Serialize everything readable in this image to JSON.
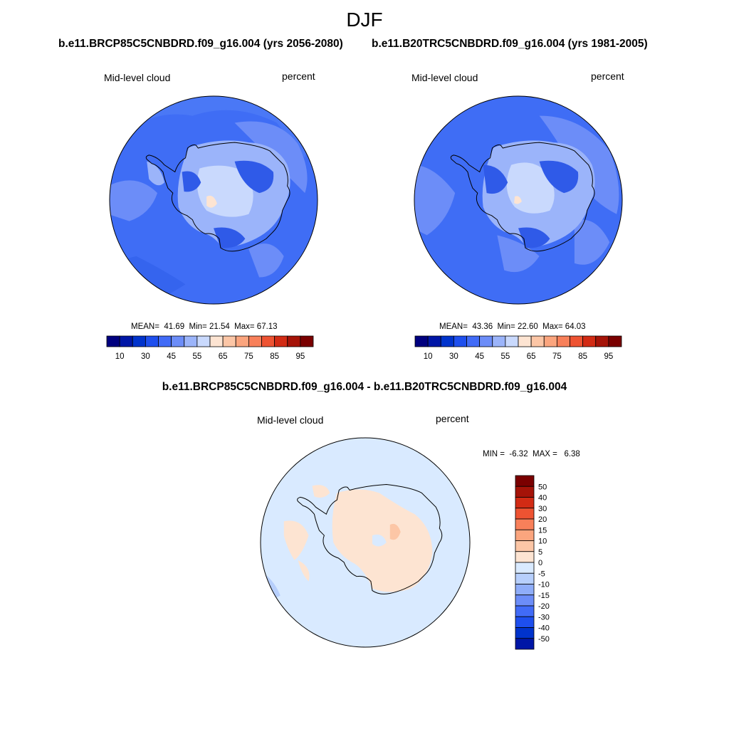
{
  "title": "DJF",
  "colors": {
    "ocean_left": "#3f6df5",
    "ocean_right": "#3f6df5",
    "diff_background": "#d9eaff",
    "coastline": "#000000"
  },
  "panels": [
    {
      "case_title": "b.e11.BRCP85C5CNBDRD.f09_g16.004 (yrs 2056-2080)",
      "variable": "Mid-level cloud",
      "units": "percent",
      "stats": {
        "mean": "41.69",
        "min": "21.54",
        "max": "67.13"
      }
    },
    {
      "case_title": "b.e11.B20TRC5CNBDRD.f09_g16.004 (yrs 1981-2005)",
      "variable": "Mid-level cloud",
      "units": "percent",
      "stats": {
        "mean": "43.36",
        "min": "22.60",
        "max": "64.03"
      }
    }
  ],
  "stat_labels": {
    "mean": "MEAN=",
    "min": "Min=",
    "max": "Max="
  },
  "colorbar": {
    "colors": [
      "#00007f",
      "#0016a6",
      "#0033cc",
      "#1e4fee",
      "#416bf7",
      "#6c8df8",
      "#9bb4fa",
      "#c9d9fd",
      "#fde4d2",
      "#fcc6a6",
      "#fba57e",
      "#f8805a",
      "#ee5332",
      "#d22b14",
      "#a51308",
      "#7a0000"
    ],
    "tick_labels": [
      "10",
      "30",
      "45",
      "55",
      "65",
      "75",
      "85",
      "95"
    ]
  },
  "difference": {
    "title": "b.e11.BRCP85C5CNBDRD.f09_g16.004 - b.e11.B20TRC5CNBDRD.f09_g16.004",
    "variable": "Mid-level cloud",
    "units": "percent",
    "min_label": "MIN =",
    "min": "-6.32",
    "max_label": "MAX =",
    "max": "6.38",
    "colorbar": {
      "colors": [
        "#7a0000",
        "#a51308",
        "#d22b14",
        "#ee5332",
        "#f8805a",
        "#fba57e",
        "#fcc6a6",
        "#fde4d2",
        "#d9eaff",
        "#b7cffc",
        "#8fadf9",
        "#6c8df8",
        "#416bf7",
        "#1e4fee",
        "#0033cc",
        "#0016a6"
      ],
      "tick_labels": [
        "50",
        "40",
        "30",
        "20",
        "15",
        "10",
        "5",
        "0",
        "-5",
        "-10",
        "-15",
        "-20",
        "-30",
        "-40",
        "-50"
      ]
    }
  }
}
